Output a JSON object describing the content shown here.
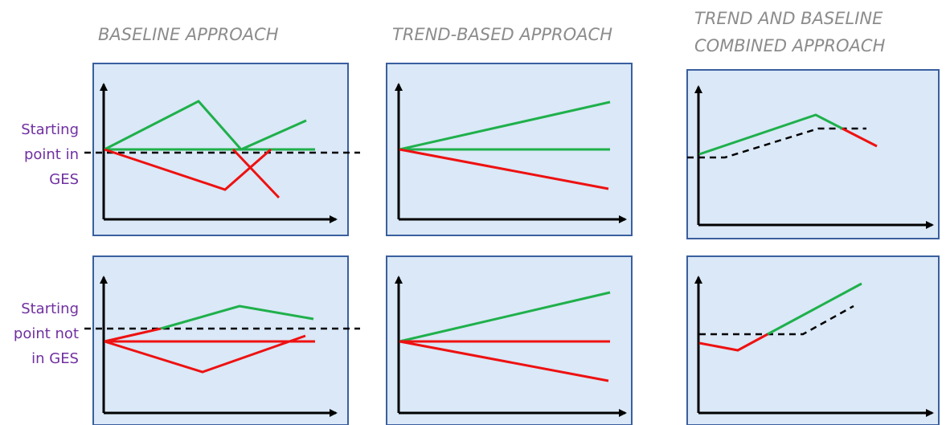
{
  "columns": [
    {
      "title": "BASELINE  APPROACH"
    },
    {
      "title": "TREND-BASED APPROACH"
    },
    {
      "title_line1": "TREND AND BASELINE",
      "title_line2": "COMBINED APPROACH"
    }
  ],
  "rows": [
    {
      "line1": "Starting",
      "line2": "point in",
      "line3": "GES"
    },
    {
      "line1": "Starting",
      "line2": "point not",
      "line3": "in GES"
    }
  ],
  "colors": {
    "panel_fill": "#dae8f7",
    "panel_border": "#3a5f9f",
    "improving": "#1fb04b",
    "deteriorating": "#ee1111",
    "reference": "#000000"
  }
}
